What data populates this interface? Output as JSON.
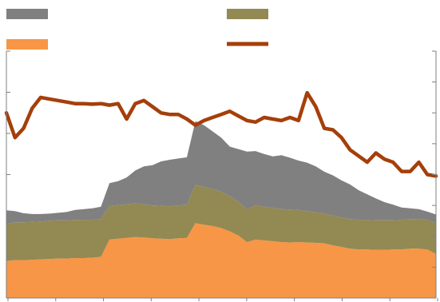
{
  "chart_data": {
    "type": "area",
    "title": "",
    "xlabel": "",
    "ylabel": "",
    "grid": false,
    "legend_placement": "top",
    "x_ticks": 9,
    "left_y_ticks": 6,
    "right_y_ticks": 8,
    "x": [
      0,
      2,
      4,
      6,
      8,
      10,
      12,
      14,
      16,
      18,
      20,
      22,
      24,
      26,
      28,
      30,
      32,
      34,
      36,
      38,
      40,
      42,
      44,
      46,
      48,
      50,
      52,
      54,
      56,
      58,
      60,
      62,
      64,
      66,
      68,
      70,
      72,
      74,
      76,
      78,
      80,
      82,
      84,
      86,
      88,
      90,
      92,
      94,
      96,
      98,
      100
    ],
    "left_axis_range": [
      0,
      6
    ],
    "right_axis_range": [
      0,
      8
    ],
    "series": [
      {
        "name": "",
        "kind": "stacked-area",
        "color": "#f79646",
        "values": [
          0.9,
          0.92,
          0.92,
          0.93,
          0.94,
          0.95,
          0.96,
          0.96,
          0.97,
          0.97,
          0.98,
          1.0,
          1.42,
          1.44,
          1.46,
          1.48,
          1.47,
          1.45,
          1.44,
          1.43,
          1.45,
          1.46,
          1.82,
          1.78,
          1.75,
          1.7,
          1.62,
          1.52,
          1.36,
          1.42,
          1.4,
          1.38,
          1.36,
          1.35,
          1.36,
          1.35,
          1.34,
          1.33,
          1.28,
          1.24,
          1.2,
          1.18,
          1.18,
          1.17,
          1.17,
          1.18,
          1.18,
          1.2,
          1.2,
          1.18,
          1.07
        ]
      },
      {
        "name": "",
        "kind": "stacked-area",
        "color": "#938953",
        "values": [
          0.9,
          0.92,
          0.92,
          0.92,
          0.92,
          0.93,
          0.93,
          0.93,
          0.93,
          0.93,
          0.92,
          0.92,
          0.82,
          0.82,
          0.82,
          0.82,
          0.81,
          0.8,
          0.8,
          0.8,
          0.8,
          0.8,
          0.93,
          0.92,
          0.9,
          0.88,
          0.86,
          0.82,
          0.8,
          0.83,
          0.82,
          0.81,
          0.8,
          0.8,
          0.78,
          0.76,
          0.74,
          0.72,
          0.72,
          0.72,
          0.72,
          0.72,
          0.72,
          0.72,
          0.72,
          0.71,
          0.72,
          0.72,
          0.72,
          0.72,
          0.76
        ]
      },
      {
        "name": "",
        "kind": "stacked-area",
        "color": "#808080",
        "values": [
          0.33,
          0.27,
          0.22,
          0.19,
          0.18,
          0.17,
          0.18,
          0.2,
          0.24,
          0.26,
          0.28,
          0.3,
          0.55,
          0.58,
          0.65,
          0.8,
          0.92,
          0.98,
          1.08,
          1.13,
          1.14,
          1.16,
          1.55,
          1.5,
          1.4,
          1.32,
          1.2,
          1.28,
          1.4,
          1.32,
          1.28,
          1.25,
          1.31,
          1.26,
          1.2,
          1.18,
          1.12,
          1.02,
          0.98,
          0.9,
          0.84,
          0.72,
          0.62,
          0.53,
          0.44,
          0.38,
          0.3,
          0.26,
          0.24,
          0.2,
          0.2
        ]
      },
      {
        "name": "",
        "kind": "line",
        "axis": "right",
        "color": "#a53f0a",
        "values": [
          6.0,
          5.2,
          5.5,
          6.15,
          6.5,
          6.45,
          6.4,
          6.35,
          6.3,
          6.3,
          6.28,
          6.3,
          6.25,
          6.3,
          5.8,
          6.3,
          6.4,
          6.2,
          6.0,
          5.95,
          5.95,
          5.8,
          5.6,
          5.75,
          5.85,
          5.95,
          6.05,
          5.9,
          5.75,
          5.7,
          5.85,
          5.8,
          5.75,
          5.85,
          5.75,
          6.65,
          6.2,
          5.5,
          5.45,
          5.2,
          4.8,
          4.6,
          4.4,
          4.7,
          4.5,
          4.4,
          4.1,
          4.1,
          4.4,
          4.0,
          3.95
        ]
      }
    ]
  }
}
